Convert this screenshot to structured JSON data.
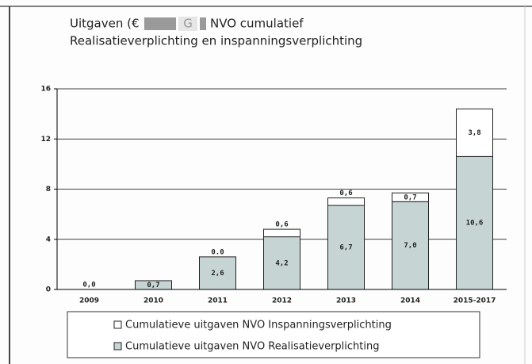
{
  "chart_data": {
    "type": "stacked_bar",
    "title": [
      "Uitgaven (€",
      "G",
      "NVO cumulatief"
    ],
    "subtitle": "Realisatieverplichting en inspanningsverplichting",
    "categories": [
      "2009",
      "2010",
      "2011",
      "2012",
      "2013",
      "2014",
      "2015-2017"
    ],
    "series": [
      {
        "name": "Cumulatieve uitgaven NVO Realisatieverplichting",
        "color": "#c6d4d4",
        "values": [
          0,
          0.7,
          2.6,
          4.2,
          6.7,
          7.0,
          10.6
        ],
        "value_labels": [
          "0,0",
          "0,7",
          "2,6",
          "4,2",
          "6,7",
          "7,0",
          "10,6"
        ]
      },
      {
        "name": "Cumulatieve uitgaven NVO Inspanningsverplichting",
        "color": "#ffffff",
        "values": [
          null,
          null,
          0,
          0.6,
          0.6,
          0.7,
          3.8
        ],
        "value_labels": [
          null,
          null,
          "0.0",
          "0,6",
          "0,6",
          "0,7",
          "3,8"
        ]
      }
    ],
    "ylim": [
      0,
      16
    ],
    "yticks": [
      0,
      4,
      8,
      12,
      16
    ],
    "grid": true
  }
}
